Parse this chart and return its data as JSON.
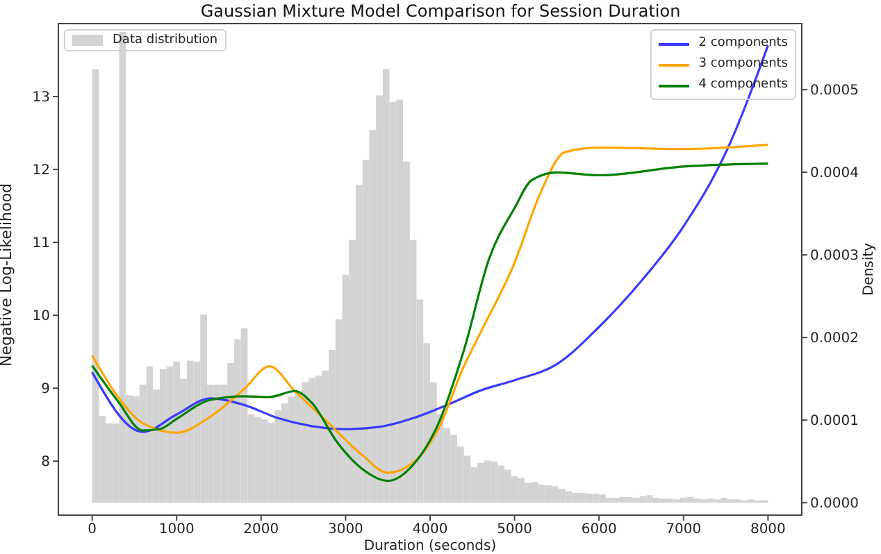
{
  "chart_data": {
    "type": "line",
    "title": "Gaussian Mixture Model Comparison for Session Duration",
    "xlabel": "Duration (seconds)",
    "ylabel": "Negative Log-Likelihood",
    "y2label": "Density",
    "xlim": [
      -400,
      8400
    ],
    "xticks": [
      0,
      1000,
      2000,
      3000,
      4000,
      5000,
      6000,
      7000,
      8000
    ],
    "ylim": [
      7.26,
      14.0
    ],
    "yticks": [
      8,
      9,
      10,
      11,
      12,
      13
    ],
    "y2lim": [
      -1.5e-05,
      0.00058
    ],
    "y2ticks": [
      {
        "value": 0,
        "label": "0.0000"
      },
      {
        "value": 0.0001,
        "label": "0.0001"
      },
      {
        "value": 0.0002,
        "label": "0.0002"
      },
      {
        "value": 0.0003,
        "label": "0.0003"
      },
      {
        "value": 0.0004,
        "label": "0.0004"
      },
      {
        "value": 0.0005,
        "label": "0.0005"
      }
    ],
    "legend": "top right",
    "marker": "none",
    "line_style": "solid",
    "series": [
      {
        "type": "histogram",
        "name": "Data distribution",
        "color": "#d3d3d3",
        "axis": "y2",
        "bins": [
          0,
          80,
          160,
          240,
          320,
          400,
          480,
          560,
          640,
          720,
          800,
          880,
          960,
          1040,
          1120,
          1200,
          1280,
          1360,
          1440,
          1520,
          1600,
          1680,
          1760,
          1840,
          1920,
          2000,
          2080,
          2160,
          2240,
          2320,
          2400,
          2480,
          2560,
          2640,
          2720,
          2800,
          2880,
          2960,
          3040,
          3120,
          3200,
          3280,
          3360,
          3440,
          3520,
          3600,
          3680,
          3760,
          3840,
          3920,
          4000,
          4080,
          4160,
          4240,
          4320,
          4400,
          4480,
          4560,
          4640,
          4720,
          4800,
          4880,
          4960,
          5040,
          5120,
          5200,
          5280,
          5360,
          5440,
          5520,
          5600,
          5680,
          5760,
          5840,
          5920,
          6000,
          6080,
          6160,
          6240,
          6320,
          6400,
          6480,
          6560,
          6640,
          6720,
          6800,
          6880,
          6960,
          7040,
          7120,
          7200,
          7280,
          7360,
          7440,
          7520,
          7600,
          7680,
          7760,
          7840,
          7920,
          8000
        ],
        "values": [
          0.000525,
          0.000105,
          9.6e-05,
          9.6e-05,
          0.00057,
          0.00013,
          0.000129,
          0.000143,
          0.000165,
          0.000137,
          0.000162,
          0.000165,
          0.000171,
          0.00015,
          0.000172,
          0.000171,
          0.000228,
          0.000143,
          0.000143,
          0.000143,
          0.000169,
          0.000198,
          0.000211,
          0.000107,
          0.000104,
          0.000101,
          9.7e-05,
          0.000112,
          0.00012,
          0.000129,
          0.000135,
          0.000146,
          0.000151,
          0.000154,
          0.00016,
          0.000185,
          0.000222,
          0.000276,
          0.000318,
          0.000385,
          0.000415,
          0.000451,
          0.000493,
          0.000525,
          0.000485,
          0.000488,
          0.000413,
          0.000318,
          0.000246,
          0.000193,
          0.000146,
          0.000107,
          9e-05,
          8.2e-05,
          6.8e-05,
          5.7e-05,
          4.3e-05,
          4.8e-05,
          5.1e-05,
          5e-05,
          4.5e-05,
          4e-05,
          3.2e-05,
          3e-05,
          2.4e-05,
          2.5e-05,
          2.2e-05,
          2.1e-05,
          2e-05,
          1.7e-05,
          1.4e-05,
          1.2e-05,
          1.2e-05,
          1.1e-05,
          1.1e-05,
          1e-05,
          6e-06,
          6e-06,
          7e-06,
          7e-06,
          6e-06,
          8e-06,
          9e-06,
          6e-06,
          5e-06,
          5e-06,
          4e-06,
          6e-06,
          7e-06,
          5e-06,
          4e-06,
          5e-06,
          4e-06,
          6e-06,
          4e-06,
          4e-06,
          3e-06,
          4e-06,
          3e-06,
          3e-06
        ]
      },
      {
        "name": "2 components",
        "color": "#3a3aff",
        "x": [
          0,
          600,
          1000,
          1400,
          1800,
          2200,
          2600,
          3000,
          3400,
          3800,
          4200,
          4600,
          5000,
          5500,
          6000,
          6500,
          7000,
          7500,
          8000
        ],
        "values": [
          9.22,
          8.4,
          8.64,
          8.86,
          8.77,
          8.59,
          8.48,
          8.44,
          8.47,
          8.59,
          8.77,
          8.97,
          9.11,
          9.33,
          9.84,
          10.47,
          11.22,
          12.23,
          13.7
        ]
      },
      {
        "name": "3 components",
        "color": "#ffa500",
        "x": [
          0,
          300,
          600,
          1000,
          1400,
          1800,
          2100,
          2400,
          2800,
          3200,
          3500,
          3800,
          4100,
          4400,
          4600,
          5000,
          5300,
          5600,
          6000,
          7000,
          8000
        ],
        "values": [
          9.45,
          8.89,
          8.52,
          8.39,
          8.61,
          8.99,
          9.3,
          8.96,
          8.52,
          8.08,
          7.84,
          7.98,
          8.45,
          9.3,
          9.77,
          10.72,
          11.66,
          12.24,
          12.3,
          12.28,
          12.34
        ]
      },
      {
        "name": "4 components",
        "color": "#008000",
        "x": [
          0,
          300,
          600,
          800,
          1000,
          1400,
          1800,
          2100,
          2400,
          2600,
          2900,
          3200,
          3500,
          3800,
          4100,
          4400,
          4700,
          5000,
          5200,
          5500,
          6000,
          7000,
          8000
        ],
        "values": [
          9.31,
          8.83,
          8.42,
          8.44,
          8.58,
          8.84,
          8.89,
          8.88,
          8.96,
          8.8,
          8.26,
          7.89,
          7.73,
          7.95,
          8.52,
          9.52,
          10.78,
          11.47,
          11.85,
          11.96,
          11.92,
          12.04,
          12.08
        ]
      }
    ]
  }
}
